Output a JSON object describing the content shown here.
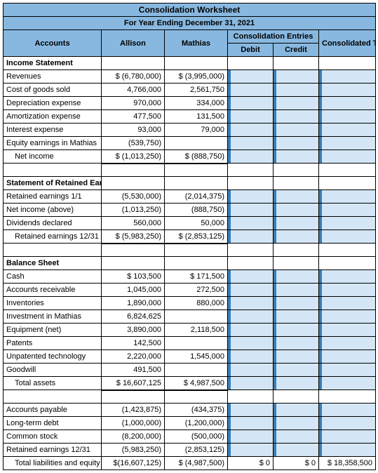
{
  "title": "Consolidation Worksheet",
  "subtitle": "For Year Ending December 31, 2021",
  "columns": {
    "accounts": "Accounts",
    "allison": "Allison",
    "mathias": "Mathias",
    "consolidation_entries": "Consolidation Entries",
    "debit": "Debit",
    "credit": "Credit",
    "consolidated_totals": "Consolidated Totals"
  },
  "sections": {
    "income_statement": "Income Statement",
    "retained_earnings": "Statement of Retained Earnings",
    "balance_sheet": "Balance Sheet"
  },
  "rows": {
    "revenues": {
      "label": "Revenues",
      "allison": "$  (6,780,000)",
      "mathias": "$  (3,995,000)"
    },
    "cogs": {
      "label": "Cost of goods sold",
      "allison": "4,766,000",
      "mathias": "2,561,750"
    },
    "depr": {
      "label": "Depreciation expense",
      "allison": "970,000",
      "mathias": "334,000"
    },
    "amort": {
      "label": "Amortization expense",
      "allison": "477,500",
      "mathias": "131,500"
    },
    "interest": {
      "label": "Interest expense",
      "allison": "93,000",
      "mathias": "79,000"
    },
    "equity_earn": {
      "label": "Equity earnings in Mathias",
      "allison": "(539,750)",
      "mathias": ""
    },
    "net_income": {
      "label": "Net income",
      "allison": "$  (1,013,250)",
      "mathias": "$      (888,750)"
    },
    "re_11": {
      "label": "Retained earnings 1/1",
      "allison": "(5,530,000)",
      "mathias": "(2,014,375)"
    },
    "ni_above": {
      "label": "Net income (above)",
      "allison": "(1,013,250)",
      "mathias": "(888,750)"
    },
    "dividends": {
      "label": "Dividends declared",
      "allison": "560,000",
      "mathias": "50,000"
    },
    "re_1231": {
      "label": "Retained earnings 12/31",
      "allison": "$  (5,983,250)",
      "mathias": "$  (2,853,125)"
    },
    "cash": {
      "label": "Cash",
      "allison": "$       103,500",
      "mathias": "$       171,500"
    },
    "ar": {
      "label": "Accounts receivable",
      "allison": "1,045,000",
      "mathias": "272,500"
    },
    "inv": {
      "label": "Inventories",
      "allison": "1,890,000",
      "mathias": "880,000"
    },
    "inv_mathias": {
      "label": "Investment in Mathias",
      "allison": "6,824,625",
      "mathias": ""
    },
    "equip": {
      "label": "Equipment (net)",
      "allison": "3,890,000",
      "mathias": "2,118,500"
    },
    "patents": {
      "label": "Patents",
      "allison": "142,500",
      "mathias": ""
    },
    "unpat": {
      "label": "Unpatented technology",
      "allison": "2,220,000",
      "mathias": "1,545,000"
    },
    "goodwill": {
      "label": "Goodwill",
      "allison": "491,500",
      "mathias": ""
    },
    "total_assets": {
      "label": "Total assets",
      "allison": "$  16,607,125",
      "mathias": "$    4,987,500"
    },
    "ap": {
      "label": "Accounts payable",
      "allison": "(1,423,875)",
      "mathias": "(434,375)"
    },
    "ltd": {
      "label": "Long-term debt",
      "allison": "(1,000,000)",
      "mathias": "(1,200,000)"
    },
    "cs": {
      "label": "Common stock",
      "allison": "(8,200,000)",
      "mathias": "(500,000)"
    },
    "re_1231b": {
      "label": "Retained earnings 12/31",
      "allison": "(5,983,250)",
      "mathias": "(2,853,125)"
    },
    "total_liab": {
      "label": "Total liabilities and equity",
      "allison": "$(16,607,125)",
      "mathias": "$  (4,987,500)",
      "debit": "$               0",
      "credit": "$              0",
      "totals": "$  18,358,500"
    }
  },
  "colors": {
    "header_bg": "#88b8e0",
    "pale_bg": "#d4e6f5",
    "flag": "#3a7fb8"
  }
}
